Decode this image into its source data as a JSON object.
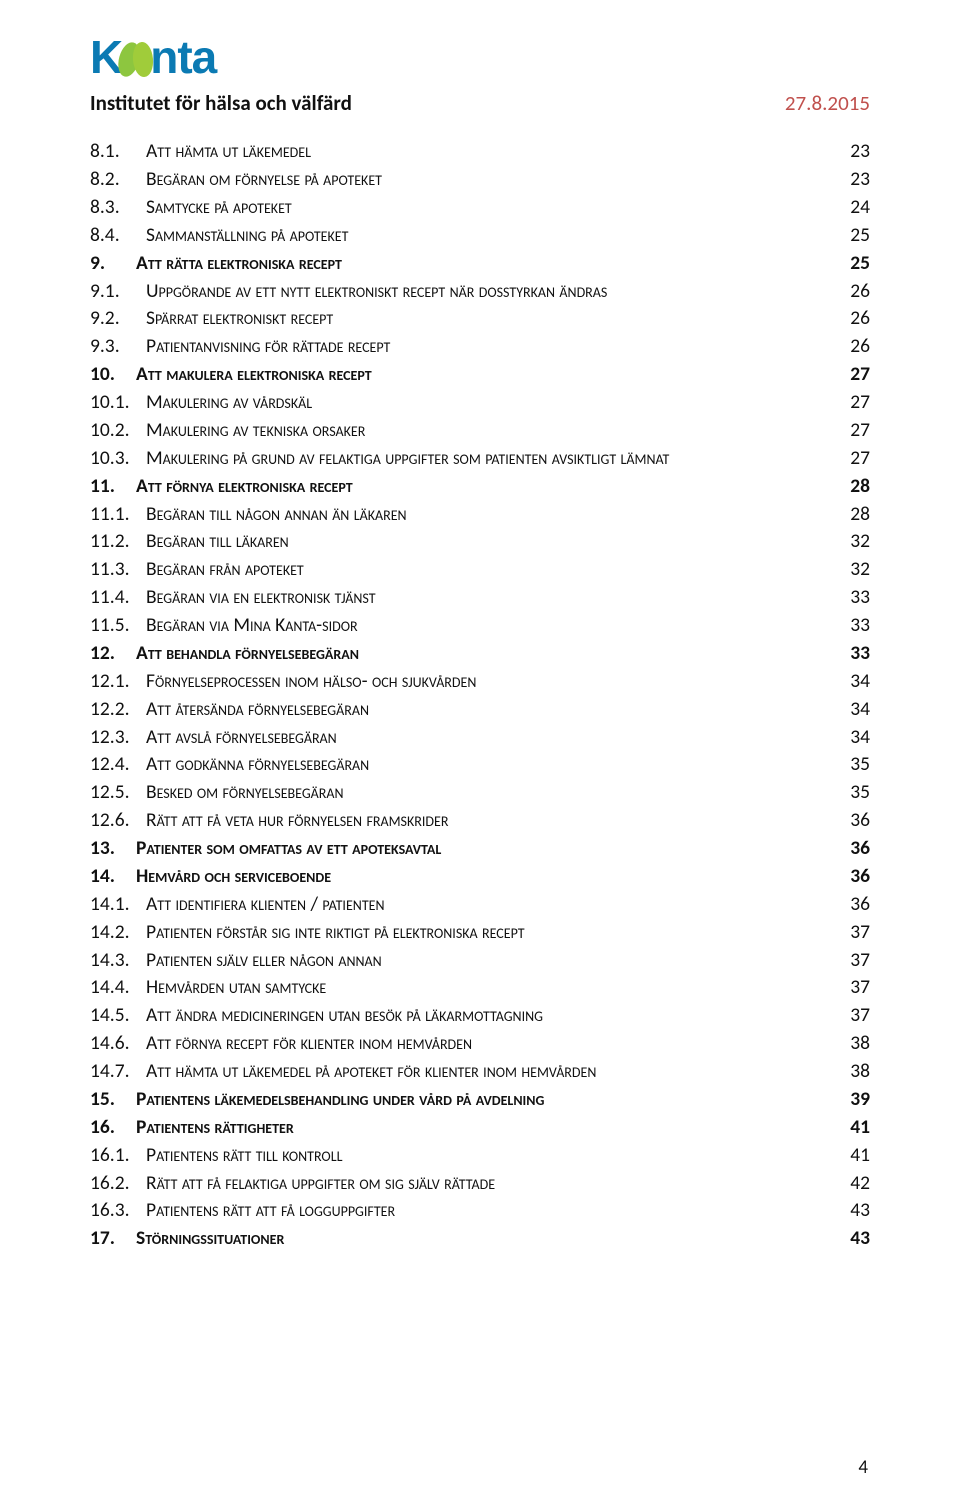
{
  "brand": {
    "name": "Kanta"
  },
  "header": {
    "institute": "Institutet för hälsa och välfärd",
    "date": "27.8.2015"
  },
  "page_number": "4",
  "colors": {
    "brand_blue": "#0b7ab3",
    "brand_green": "#8dc63f",
    "date_red": "#c0504d",
    "text": "#111111",
    "background": "#ffffff"
  },
  "toc": [
    {
      "level": 2,
      "num": "8.1.",
      "title": "Att hämta ut läkemedel",
      "page": "23"
    },
    {
      "level": 2,
      "num": "8.2.",
      "title": "Begäran om förnyelse på apoteket",
      "page": "23"
    },
    {
      "level": 2,
      "num": "8.3.",
      "title": "Samtycke på apoteket",
      "page": "24"
    },
    {
      "level": 2,
      "num": "8.4.",
      "title": "Sammanställning på apoteket",
      "page": "25"
    },
    {
      "level": 1,
      "num": "9.",
      "title": "Att rätta elektroniska recept",
      "page": "25"
    },
    {
      "level": 2,
      "num": "9.1.",
      "title": "Uppgörande av ett nytt elektroniskt recept när dosstyrkan ändras",
      "page": "26"
    },
    {
      "level": 2,
      "num": "9.2.",
      "title": "Spärrat elektroniskt recept",
      "page": "26"
    },
    {
      "level": 2,
      "num": "9.3.",
      "title": "Patientanvisning för rättade recept",
      "page": "26"
    },
    {
      "level": 1,
      "num": "10.",
      "title": "Att makulera elektroniska recept",
      "page": "27"
    },
    {
      "level": 2,
      "num": "10.1.",
      "title": "Makulering av vårdskäl",
      "page": "27"
    },
    {
      "level": 2,
      "num": "10.2.",
      "title": "Makulering av tekniska orsaker",
      "page": "27"
    },
    {
      "level": 2,
      "num": "10.3.",
      "title": "Makulering på grund av felaktiga uppgifter som patienten avsiktligt lämnat",
      "page": "27"
    },
    {
      "level": 1,
      "num": "11.",
      "title": "Att förnya elektroniska recept",
      "page": "28"
    },
    {
      "level": 2,
      "num": "11.1.",
      "title": "Begäran till någon annan än läkaren",
      "page": "28"
    },
    {
      "level": 2,
      "num": "11.2.",
      "title": "Begäran till läkaren",
      "page": "32"
    },
    {
      "level": 2,
      "num": "11.3.",
      "title": "Begäran från apoteket",
      "page": "32"
    },
    {
      "level": 2,
      "num": "11.4.",
      "title": "Begäran via en elektronisk tjänst",
      "page": "33"
    },
    {
      "level": 2,
      "num": "11.5.",
      "title": "Begäran via Mina Kanta-sidor",
      "page": "33"
    },
    {
      "level": 1,
      "num": "12.",
      "title": "Att behandla förnyelsebegäran",
      "page": "33"
    },
    {
      "level": 2,
      "num": "12.1.",
      "title": "Förnyelseprocessen inom hälso- och sjukvården",
      "page": "34"
    },
    {
      "level": 2,
      "num": "12.2.",
      "title": "Att återsända förnyelsebegäran",
      "page": "34"
    },
    {
      "level": 2,
      "num": "12.3.",
      "title": "Att avslå förnyelsebegäran",
      "page": "34"
    },
    {
      "level": 2,
      "num": "12.4.",
      "title": "Att godkänna förnyelsebegäran",
      "page": "35"
    },
    {
      "level": 2,
      "num": "12.5.",
      "title": "Besked om förnyelsebegäran",
      "page": "35"
    },
    {
      "level": 2,
      "num": "12.6.",
      "title": "Rätt att få veta hur förnyelsen framskrider",
      "page": "36"
    },
    {
      "level": 1,
      "num": "13.",
      "title": "Patienter som omfattas av ett apoteksavtal",
      "page": "36"
    },
    {
      "level": 1,
      "num": "14.",
      "title": "Hemvård och serviceboende",
      "page": "36"
    },
    {
      "level": 2,
      "num": "14.1.",
      "title": "Att identifiera klienten / patienten",
      "page": "36"
    },
    {
      "level": 2,
      "num": "14.2.",
      "title": "Patienten förstår sig inte riktigt på elektroniska recept",
      "page": "37"
    },
    {
      "level": 2,
      "num": "14.3.",
      "title": "Patienten själv eller någon annan",
      "page": "37"
    },
    {
      "level": 2,
      "num": "14.4.",
      "title": "Hemvården utan samtycke",
      "page": "37"
    },
    {
      "level": 2,
      "num": "14.5.",
      "title": "Att ändra medicineringen utan besök på läkarmottagning",
      "page": "37"
    },
    {
      "level": 2,
      "num": "14.6.",
      "title": "Att förnya recept för klienter inom hemvården",
      "page": "38"
    },
    {
      "level": 2,
      "num": "14.7.",
      "title": "Att hämta ut läkemedel på apoteket för klienter inom hemvården",
      "page": "38"
    },
    {
      "level": 1,
      "num": "15.",
      "title": "Patientens läkemedelsbehandling under vård på avdelning",
      "page": "39"
    },
    {
      "level": 1,
      "num": "16.",
      "title": "Patientens rättigheter",
      "page": "41"
    },
    {
      "level": 2,
      "num": "16.1.",
      "title": "Patientens rätt till kontroll",
      "page": "41"
    },
    {
      "level": 2,
      "num": "16.2.",
      "title": "Rätt att få felaktiga uppgifter om sig själv rättade",
      "page": "42"
    },
    {
      "level": 2,
      "num": "16.3.",
      "title": "Patientens rätt att få logguppgifter",
      "page": "43"
    },
    {
      "level": 1,
      "num": "17.",
      "title": "Störningssituationer",
      "page": "43"
    }
  ]
}
